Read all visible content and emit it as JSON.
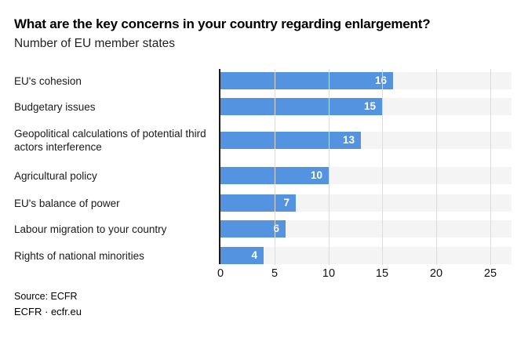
{
  "header": {
    "title": "What are the key concerns in your country regarding enlargement?",
    "subtitle": "Number of EU member states"
  },
  "footer": {
    "source": "Source: ECFR",
    "credit": "ECFR · ecfr.eu"
  },
  "colors": {
    "bar": "#5493e0",
    "row_stripe": "#f4f4f4",
    "gridline": "#dcdcdc",
    "axis_line": "#1a1a1a",
    "value_label": "#ffffff",
    "text": "#1a1a1a",
    "background": "#ffffff"
  },
  "chart_data": {
    "type": "bar",
    "orientation": "horizontal",
    "title": "What are the key concerns in your country regarding enlargement?",
    "subtitle": "Number of EU member states",
    "categories": [
      "EU's cohesion",
      "Budgetary issues",
      "Geopolitical calculations of potential third actors interference",
      "Agricultural policy",
      "EU's balance of power",
      "Labour migration to your country",
      "Rights of national minorities"
    ],
    "values": [
      16,
      15,
      13,
      10,
      7,
      6,
      4
    ],
    "value_labels_position": "inside-end",
    "xlabel": "",
    "ylabel": "",
    "xlim": [
      0,
      27
    ],
    "x_ticks": [
      0,
      5,
      10,
      15,
      20,
      25
    ],
    "grid": true,
    "legend": false
  }
}
